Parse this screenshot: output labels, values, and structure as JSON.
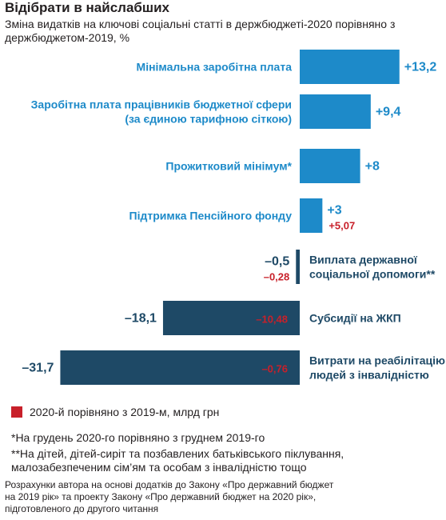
{
  "header": {
    "title": "Відібрати в найслабших",
    "subtitle": "Зміна видатків на ключові соціальні статті в держбюджеті-2020 порівняно з держбюджетом-2019, %"
  },
  "colors": {
    "positive_bar": "#1d8ac9",
    "negative_bar": "#1e4966",
    "red_value": "#c8202a"
  },
  "chart_data": {
    "type": "bar",
    "orientation": "horizontal",
    "title": "Зміна видатків на ключові соціальні статті в держбюджеті-2020 порівняно з держбюджетом-2019, %",
    "unit": "%",
    "categories": [
      [
        "Мінімальна заробітна плата"
      ],
      [
        "Заробітна плата працівників бюджетної сфери",
        "(за єдиною тарифною сіткою)"
      ],
      [
        "Прожитковий мінімум*"
      ],
      [
        "Підтримка Пенсійного фонду"
      ],
      [
        "Виплата державної",
        "соціальної допомоги**"
      ],
      [
        "Субсидії на ЖКП"
      ],
      [
        "Витрати на реабілітацію",
        "людей з інвалідністю"
      ]
    ],
    "series": [
      {
        "values": [
          13.2,
          9.4,
          8,
          3,
          -0.5,
          -18.1,
          -31.7
        ],
        "labels": [
          "+13,2",
          "+9,4",
          "+8",
          "+3",
          "–0,5",
          "–18,1",
          "–31,7"
        ]
      },
      {
        "name": "2020-й порівняно з 2019-м, млрд грн",
        "values": [
          null,
          null,
          null,
          5.07,
          -0.28,
          -10.48,
          -0.76
        ],
        "labels": [
          "",
          "",
          "",
          "+5,07",
          "–0,28",
          "–10,48",
          "–0,76"
        ]
      }
    ]
  },
  "legend": {
    "label": "2020-й порівняно з 2019-м, млрд грн"
  },
  "notes": {
    "note1": "*На грудень 2020-го порівняно з груднем 2019-го",
    "note2_line1": "**На дітей, дітей-сиріт та позбавлених батьківського піклування,",
    "note2_line2": "малозабезпеченим сім’ям та особам з інвалідністю тощо"
  },
  "source": {
    "line1": "Розрахунки автора на основі додатків до Закону «Про державний бюджет",
    "line2": "на 2019 рік» та проекту Закону «Про державний бюджет на 2020 рік»,",
    "line3": "підготовленого до другого читання"
  }
}
